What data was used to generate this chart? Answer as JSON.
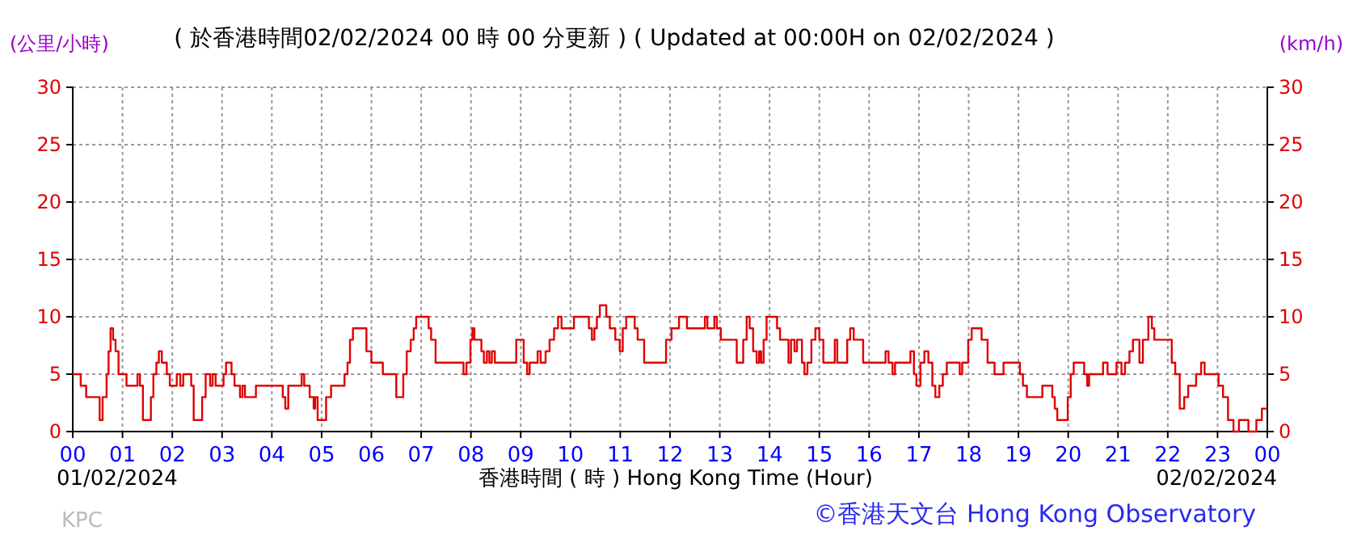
{
  "chart_data": {
    "type": "step",
    "title": "( 於香港時間02/02/2024 00 時 00 分更新 ) ( Updated at 00:00H on 02/02/2024 )",
    "xlabel": "香港時間 ( 時 ) Hong Kong Time (Hour)",
    "ylabel": "(公里/小時)",
    "y2label": "(km/h)",
    "annotations": [
      "01/02/2024",
      "02/02/2024",
      "KPC",
      "©香港天文台 Hong Kong Observatory"
    ],
    "x": [
      0,
      0.16,
      0.27,
      0.54,
      0.6,
      0.68,
      0.72,
      0.76,
      0.81,
      0.86,
      0.92,
      1.08,
      1.3,
      1.35,
      1.41,
      1.57,
      1.62,
      1.68,
      1.73,
      1.79,
      1.89,
      1.95,
      2.09,
      2.16,
      2.22,
      2.38,
      2.43,
      2.6,
      2.67,
      2.76,
      2.81,
      2.87,
      3.03,
      3.08,
      3.19,
      3.25,
      3.36,
      3.41,
      3.46,
      3.68,
      4.22,
      4.27,
      4.33,
      4.6,
      4.65,
      4.76,
      4.84,
      4.87,
      4.92,
      5.09,
      5.19,
      5.46,
      5.52,
      5.57,
      5.63,
      5.9,
      6.0,
      6.23,
      6.5,
      6.64,
      6.71,
      6.79,
      6.85,
      6.9,
      7.15,
      7.2,
      7.29,
      7.85,
      7.91,
      7.99,
      8.03,
      8.07,
      8.21,
      8.26,
      8.32,
      8.37,
      8.42,
      8.48,
      8.91,
      9.06,
      9.13,
      9.18,
      9.34,
      9.4,
      9.5,
      9.58,
      9.67,
      9.75,
      9.82,
      10.07,
      10.37,
      10.43,
      10.48,
      10.53,
      10.59,
      10.72,
      10.79,
      10.9,
      10.99,
      11.05,
      11.12,
      11.29,
      11.35,
      11.48,
      11.92,
      12.03,
      12.18,
      12.34,
      12.7,
      12.75,
      12.89,
      12.94,
      13.02,
      13.34,
      13.47,
      13.54,
      13.6,
      13.67,
      13.74,
      13.79,
      13.83,
      13.88,
      13.94,
      14.15,
      14.21,
      14.38,
      14.43,
      14.5,
      14.55,
      14.65,
      14.7,
      14.76,
      14.84,
      14.92,
      15.0,
      15.08,
      15.31,
      15.36,
      15.56,
      15.62,
      15.69,
      15.88,
      16.33,
      16.39,
      16.47,
      16.52,
      16.83,
      16.9,
      16.95,
      17.03,
      17.11,
      17.19,
      17.27,
      17.33,
      17.41,
      17.48,
      17.56,
      17.82,
      17.87,
      17.99,
      18.06,
      18.26,
      18.38,
      18.52,
      18.7,
      19.03,
      19.09,
      19.17,
      19.48,
      19.68,
      19.73,
      19.78,
      19.99,
      20.05,
      20.11,
      20.32,
      20.38,
      20.42,
      20.7,
      20.79,
      20.97,
      21.07,
      21.14,
      21.23,
      21.3,
      21.43,
      21.5,
      21.61,
      21.68,
      21.73,
      22.08,
      22.15,
      22.24,
      22.33,
      22.41,
      22.57,
      22.67,
      22.74,
      23.02,
      23.11,
      23.21,
      23.32,
      23.43,
      23.62,
      23.78,
      23.89,
      24
    ],
    "series": [
      {
        "color": "#e00000",
        "values": [
          5,
          4,
          3,
          1,
          3,
          5,
          7,
          9,
          8,
          7,
          5,
          4,
          5,
          4,
          1,
          3,
          5,
          6,
          7,
          6,
          5,
          4,
          5,
          4,
          5,
          4,
          1,
          3,
          5,
          4,
          5,
          4,
          5,
          6,
          5,
          4,
          3,
          4,
          3,
          4,
          3,
          2,
          4,
          5,
          4,
          3,
          2,
          3,
          1,
          3,
          4,
          5,
          6,
          8,
          9,
          7,
          6,
          5,
          3,
          5,
          7,
          8,
          9,
          10,
          9,
          8,
          6,
          5,
          6,
          8,
          9,
          8,
          7,
          6,
          7,
          6,
          7,
          6,
          8,
          6,
          5,
          6,
          7,
          6,
          7,
          8,
          9,
          10,
          9,
          10,
          9,
          8,
          9,
          10,
          11,
          10,
          9,
          8,
          7,
          9,
          10,
          9,
          8,
          6,
          8,
          9,
          10,
          9,
          10,
          9,
          10,
          9,
          8,
          6,
          8,
          10,
          9,
          7,
          6,
          7,
          6,
          8,
          10,
          9,
          8,
          6,
          8,
          7,
          8,
          6,
          5,
          6,
          8,
          9,
          8,
          6,
          8,
          6,
          8,
          9,
          8,
          6,
          7,
          6,
          5,
          6,
          7,
          5,
          4,
          6,
          7,
          6,
          4,
          3,
          4,
          5,
          6,
          5,
          6,
          8,
          9,
          8,
          6,
          5,
          6,
          5,
          4,
          3,
          4,
          3,
          2,
          1,
          3,
          5,
          6,
          5,
          4,
          5,
          6,
          5,
          6,
          5,
          6,
          7,
          8,
          6,
          8,
          10,
          9,
          8,
          6,
          5,
          2,
          3,
          4,
          5,
          6,
          5,
          4,
          3,
          1,
          0,
          1,
          0,
          1,
          2,
          2
        ]
      }
    ],
    "xlim": [
      0,
      24
    ],
    "xticks": [
      {
        "value": 0,
        "label": "00"
      },
      {
        "value": 1,
        "label": "01"
      },
      {
        "value": 2,
        "label": "02"
      },
      {
        "value": 3,
        "label": "03"
      },
      {
        "value": 4,
        "label": "04"
      },
      {
        "value": 5,
        "label": "05"
      },
      {
        "value": 6,
        "label": "06"
      },
      {
        "value": 7,
        "label": "07"
      },
      {
        "value": 8,
        "label": "08"
      },
      {
        "value": 9,
        "label": "09"
      },
      10,
      11,
      12,
      13,
      14,
      15,
      16,
      17,
      18,
      19,
      20,
      21,
      22,
      23,
      {
        "value": 24,
        "label": "00"
      }
    ],
    "ylim": [
      0,
      30
    ],
    "yticks": [
      0,
      5,
      10,
      15,
      20,
      25,
      30
    ],
    "y2lim": [
      0,
      30
    ],
    "y2ticks": [
      0,
      5,
      10,
      15,
      20,
      25,
      30
    ],
    "grid": true,
    "marker": "none",
    "line_style": "solid"
  }
}
